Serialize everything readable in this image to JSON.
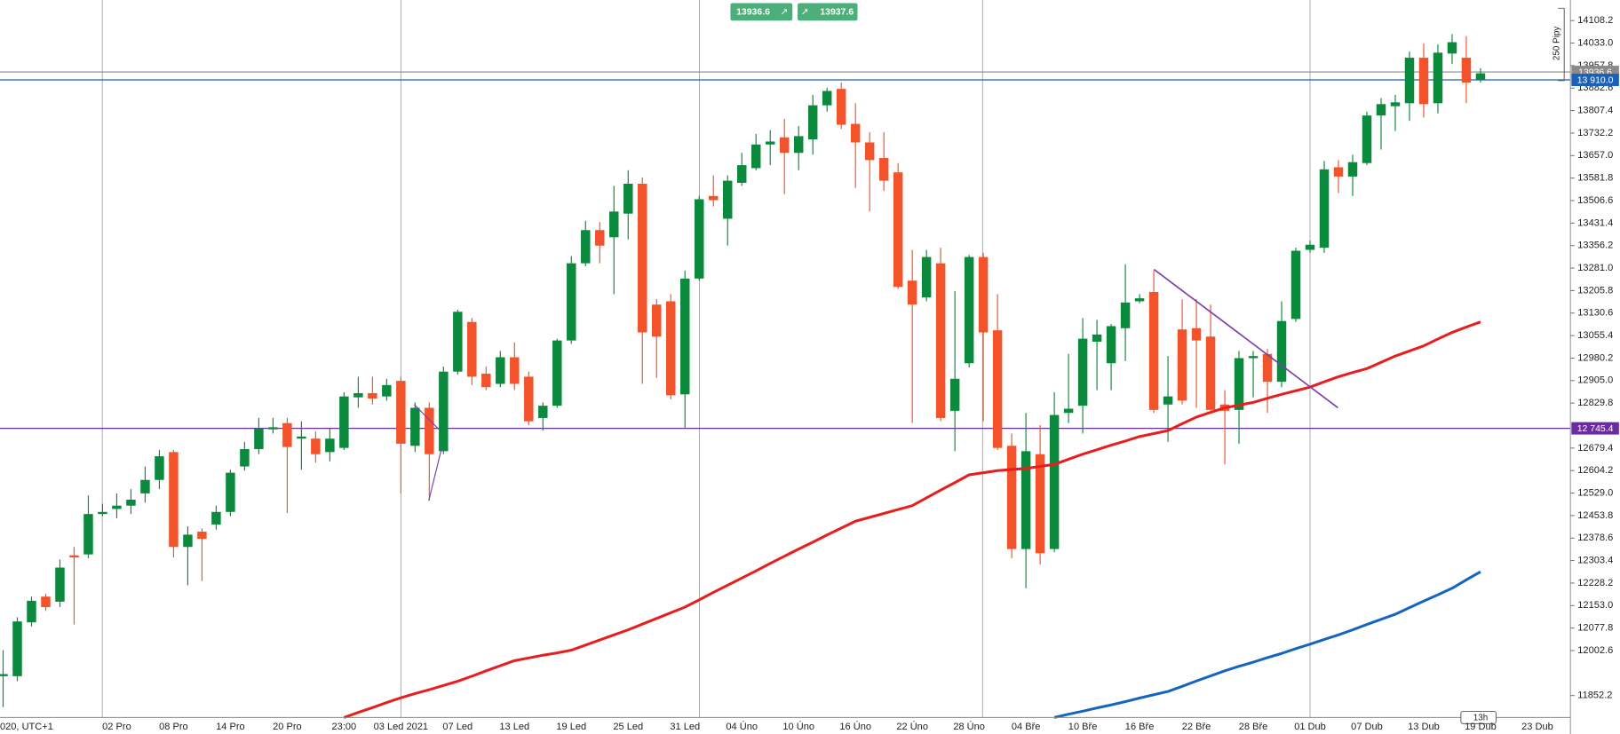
{
  "chart_data": {
    "type": "candlestick",
    "categories": [
      "020, UTC+1",
      null,
      null,
      null,
      null,
      null,
      null,
      null,
      "02 Pro",
      null,
      null,
      null,
      "08 Pro",
      null,
      null,
      null,
      "14 Pro",
      null,
      null,
      null,
      "20 Pro",
      null,
      null,
      null,
      "23:00",
      null,
      null,
      null,
      "03 Led 2021",
      null,
      null,
      null,
      "07 Led",
      null,
      null,
      null,
      "13 Led",
      null,
      null,
      null,
      "19 Led",
      null,
      null,
      null,
      "25 Led",
      null,
      null,
      null,
      "31 Led",
      null,
      null,
      null,
      "04 Úno",
      null,
      null,
      null,
      "10 Úno",
      null,
      null,
      null,
      "16 Úno",
      null,
      null,
      null,
      "22 Úno",
      null,
      null,
      null,
      "28 Úno",
      null,
      null,
      null,
      "04 Bře",
      null,
      null,
      null,
      "10 Bře",
      null,
      null,
      null,
      "16 Bře",
      null,
      null,
      null,
      "22 Bře",
      null,
      null,
      null,
      "28 Bře",
      null,
      null,
      null,
      "01 Dub",
      null,
      null,
      null,
      "07 Dub",
      null,
      null,
      null,
      "13 Dub",
      null,
      null,
      null,
      "19 Dub",
      null,
      null,
      null,
      "23 Dub"
    ],
    "open": [
      11917,
      11917,
      12097,
      12183,
      12166,
      12321,
      12324,
      12459,
      12476,
      12487,
      12528,
      12573,
      12666,
      12349,
      12400,
      12424,
      12466,
      12618,
      12676,
      12742,
      12763,
      12711,
      12711,
      12666,
      12680,
      12849,
      12863,
      12852,
      12904,
      12687,
      12814,
      12669,
      12935,
      13101,
      12928,
      12894,
      12983,
      12918,
      12780,
      12821,
      13039,
      13297,
      13408,
      13384,
      13463,
      13563,
      13159,
      13170,
      12859,
      13246,
      13522,
      13446,
      13566,
      13615,
      13694,
      13718,
      13666,
      13711,
      13825,
      13880,
      13763,
      13701,
      13649,
      13601,
      13239,
      13183,
      13297,
      12804,
      12963,
      13318,
      13073,
      12687,
      12342,
      12659,
      12342,
      12797,
      12821,
      13035,
      12963,
      13080,
      13170,
      13201,
      12825,
      13076,
      13080,
      13052,
      12825,
      12807,
      12980,
      12994,
      12901,
      13111,
      13342,
      13349,
      13618,
      13587,
      13632,
      13791,
      13822,
      13832,
      13984,
      13832,
      13998,
      13984,
      13911,
      null,
      null,
      null,
      null
    ],
    "high": [
      12004,
      12114,
      12183,
      12193,
      12307,
      12349,
      12521,
      12493,
      12528,
      12542,
      12618,
      12673,
      12673,
      12418,
      12411,
      12487,
      12607,
      12700,
      12780,
      12780,
      12780,
      12769,
      12735,
      12745,
      12866,
      12918,
      12918,
      12911,
      12918,
      12832,
      12832,
      12952,
      13142,
      13114,
      12952,
      13004,
      13032,
      12935,
      12832,
      13045,
      13321,
      13439,
      13435,
      13556,
      13608,
      13584,
      13177,
      13194,
      13273,
      13522,
      13591,
      13591,
      13666,
      13729,
      13742,
      13780,
      13756,
      13860,
      13884,
      13901,
      13832,
      13735,
      13735,
      13632,
      13342,
      13342,
      13349,
      13204,
      13325,
      13332,
      13194,
      12728,
      12797,
      12756,
      12866,
      12994,
      13114,
      13108,
      13094,
      13294,
      13194,
      13273,
      12987,
      13177,
      13177,
      13159,
      12873,
      13004,
      13004,
      13011,
      13170,
      13349,
      13373,
      13639,
      13642,
      13660,
      13804,
      13849,
      13860,
      14005,
      14032,
      14029,
      14063,
      14056,
      13949,
      null,
      null,
      null,
      null
    ],
    "low": [
      11814,
      11900,
      12083,
      12135,
      12148,
      12090,
      12311,
      12452,
      12445,
      12459,
      12497,
      12542,
      12314,
      12221,
      12235,
      12407,
      12452,
      12604,
      12659,
      12728,
      12462,
      12607,
      12631,
      12635,
      12673,
      12814,
      12825,
      12838,
      12528,
      12666,
      12504,
      12659,
      12925,
      12890,
      12873,
      12883,
      12873,
      12756,
      12738,
      12814,
      13028,
      13287,
      13297,
      13194,
      13377,
      12894,
      12914,
      12842,
      12745,
      13239,
      13487,
      13356,
      13556,
      13608,
      13625,
      13528,
      13608,
      13660,
      13804,
      13746,
      13549,
      13470,
      13539,
      13211,
      12763,
      13170,
      12769,
      12669,
      12949,
      12769,
      12673,
      12311,
      12211,
      12290,
      12331,
      12763,
      12728,
      12873,
      12873,
      12970,
      13163,
      12797,
      12700,
      12825,
      12814,
      12804,
      12625,
      12694,
      12849,
      12797,
      12883,
      13101,
      13332,
      13332,
      13532,
      13522,
      13625,
      13677,
      13739,
      13773,
      13784,
      13798,
      13963,
      13832,
      13901,
      null,
      null,
      null,
      null
    ],
    "close": [
      11924,
      12100,
      12169,
      12148,
      12280,
      12314,
      12459,
      12466,
      12487,
      12507,
      12573,
      12652,
      12349,
      12390,
      12376,
      12466,
      12597,
      12676,
      12745,
      12749,
      12683,
      12718,
      12659,
      12711,
      12852,
      12863,
      12845,
      12890,
      12694,
      12814,
      12659,
      12935,
      13135,
      12918,
      12883,
      12983,
      12894,
      12769,
      12821,
      13039,
      13297,
      13408,
      13356,
      13470,
      13563,
      13066,
      13052,
      12856,
      13246,
      13511,
      13508,
      13573,
      13625,
      13694,
      13704,
      13666,
      13722,
      13825,
      13873,
      13760,
      13701,
      13642,
      13573,
      13218,
      13159,
      13318,
      12780,
      12911,
      13318,
      13066,
      12680,
      12342,
      12669,
      12328,
      12790,
      12811,
      13045,
      13059,
      13087,
      13166,
      13180,
      12807,
      12852,
      12838,
      13039,
      12807,
      12804,
      12980,
      12987,
      12901,
      13104,
      13339,
      13359,
      13611,
      13587,
      13635,
      13791,
      13829,
      13835,
      13984,
      13829,
      14001,
      14036,
      13901,
      13932,
      null,
      null,
      null,
      null
    ],
    "up_color": "#0b8a3e",
    "down_color": "#f2532b",
    "overlays": [
      {
        "color": "#e81e1e",
        "values": [
          null,
          null,
          null,
          null,
          null,
          null,
          null,
          null,
          null,
          null,
          null,
          null,
          null,
          null,
          null,
          null,
          null,
          null,
          null,
          null,
          null,
          null,
          null,
          null,
          11779,
          11796,
          11812,
          11829,
          11845,
          11859,
          11872,
          11886,
          11900,
          11917,
          11935,
          11952,
          11969,
          11978,
          11987,
          11995,
          12004,
          12021,
          12038,
          12055,
          12072,
          12091,
          12110,
          12129,
          12148,
          12172,
          12197,
          12221,
          12245,
          12269,
          12294,
          12318,
          12342,
          12365,
          12389,
          12412,
          12435,
          12448,
          12461,
          12474,
          12487,
          12513,
          12539,
          12564,
          12590,
          12597,
          12604,
          12608,
          12611,
          12618,
          12625,
          12642,
          12659,
          12674,
          12689,
          12703,
          12718,
          12728,
          12738,
          12761,
          12783,
          12799,
          12814,
          12823,
          12832,
          12846,
          12859,
          12871,
          12883,
          12901,
          12918,
          12932,
          12945,
          12966,
          12987,
          13004,
          13021,
          13044,
          13066,
          13084,
          13101,
          null,
          null,
          null,
          null
        ]
      },
      {
        "color": "#1565c0",
        "values": [
          null,
          null,
          null,
          null,
          null,
          null,
          null,
          null,
          null,
          null,
          null,
          null,
          null,
          null,
          null,
          null,
          null,
          null,
          null,
          null,
          null,
          null,
          null,
          null,
          null,
          null,
          null,
          null,
          null,
          null,
          null,
          null,
          null,
          null,
          null,
          null,
          null,
          null,
          null,
          null,
          null,
          null,
          null,
          null,
          null,
          null,
          null,
          null,
          null,
          null,
          null,
          null,
          null,
          null,
          null,
          null,
          null,
          null,
          null,
          null,
          null,
          null,
          null,
          null,
          null,
          null,
          null,
          null,
          null,
          null,
          null,
          null,
          null,
          null,
          11779,
          11790,
          11800,
          11811,
          11821,
          11832,
          11844,
          11855,
          11866,
          11883,
          11901,
          11918,
          11935,
          11950,
          11964,
          11979,
          11993,
          12009,
          12024,
          12040,
          12055,
          12072,
          12090,
          12107,
          12124,
          12146,
          12168,
          12189,
          12211,
          12239,
          12266,
          null,
          null,
          null,
          null
        ]
      }
    ],
    "hlines": [
      {
        "value": 13936.6,
        "color": "#8a8a8a"
      },
      {
        "value": 13910.0,
        "label": "13 910.0",
        "color": "#1a62b8"
      },
      {
        "value": 12745.4,
        "label": "12 745.4",
        "color": "#6a2c9e"
      }
    ],
    "ylim": [
      11779,
      14177
    ],
    "yticks": [
      14108.2,
      {
        "value": 14033,
        "label": "14033.0"
      },
      13957.8,
      13882.6,
      13807.4,
      13732.2,
      {
        "value": 13657,
        "label": "13657.0"
      },
      13581.8,
      13506.6,
      13431.4,
      13356.2,
      {
        "value": 13281,
        "label": "13281.0"
      },
      13205.8,
      13130.6,
      13055.4,
      12980.2,
      {
        "value": 12905,
        "label": "12905.0"
      },
      12829.8,
      12679.4,
      12604.2,
      {
        "value": 12529,
        "label": "12529.0"
      },
      12453.8,
      12378.6,
      12303.4,
      12228.2,
      {
        "value": 12153,
        "label": "12153.0"
      },
      12077.8,
      12002.6,
      11852.2
    ],
    "grid": false,
    "pip_label": "250 Pipy",
    "timeframe": "13h"
  },
  "toolbar": {
    "sell": "13936.6",
    "buy": "13937.6"
  }
}
